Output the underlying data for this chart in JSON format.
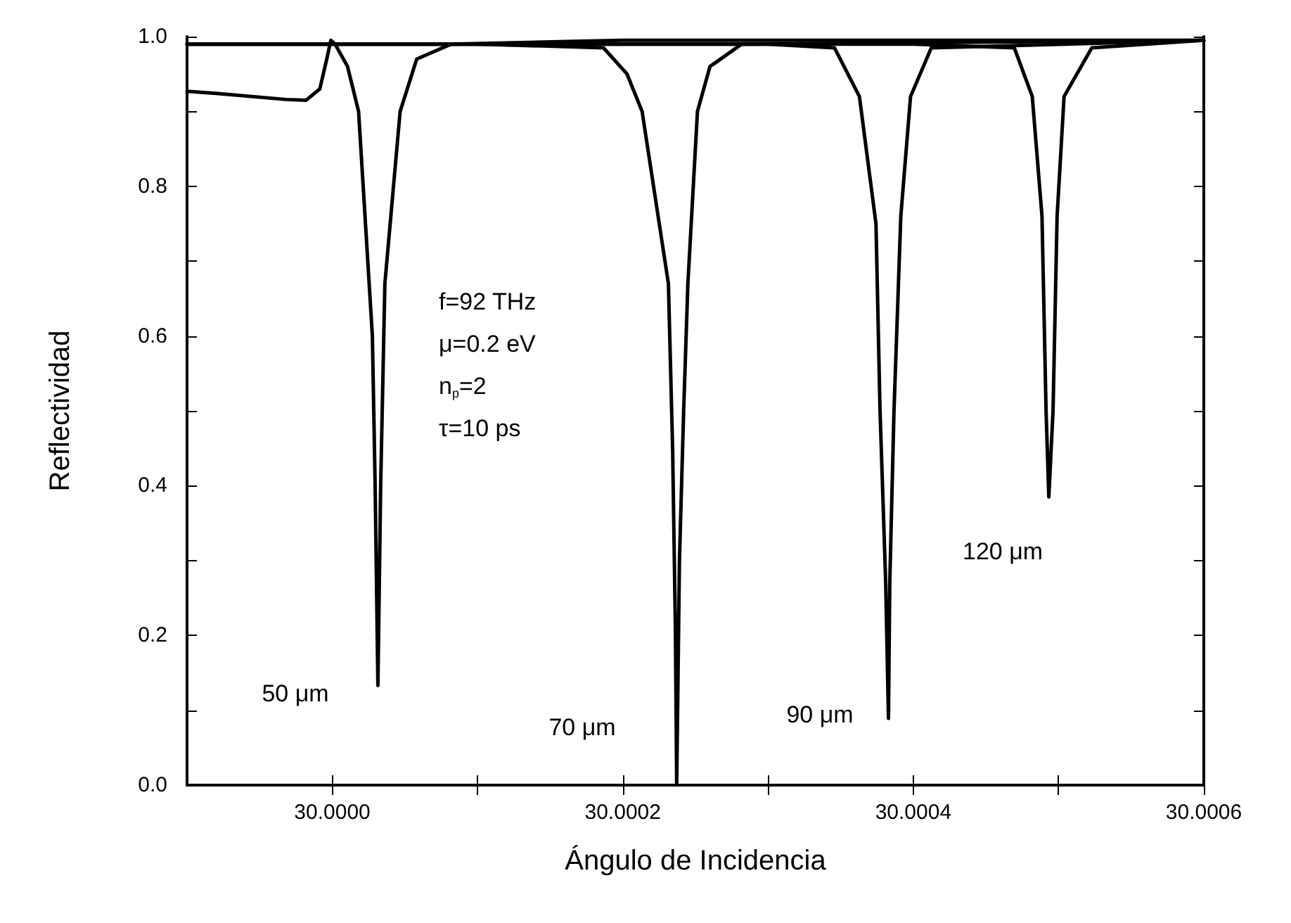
{
  "chart_data": {
    "type": "line",
    "xlabel": "Ángulo de Incidencia",
    "ylabel": "Reflectividad",
    "xlim": [
      29.9999,
      30.0006
    ],
    "ylim": [
      0,
      1
    ],
    "xticks": [
      {
        "value": 30,
        "label": "30.0000"
      },
      {
        "value": 30.0001,
        "label": null
      },
      {
        "value": 30.0002,
        "label": "30.0002"
      },
      {
        "value": 30.0003,
        "label": null
      },
      {
        "value": 30.0004,
        "label": "30.0004"
      },
      {
        "value": 30.0005,
        "label": null
      },
      {
        "value": 30.0006,
        "label": "30.0006"
      }
    ],
    "yticks": [
      {
        "value": 0,
        "label": "0.0"
      },
      {
        "value": 0.1,
        "label": null
      },
      {
        "value": 0.2,
        "label": "0.2"
      },
      {
        "value": 0.3,
        "label": null
      },
      {
        "value": 0.4,
        "label": "0.4"
      },
      {
        "value": 0.5,
        "label": null
      },
      {
        "value": 0.6,
        "label": "0.6"
      },
      {
        "value": 0.7,
        "label": null
      },
      {
        "value": 0.8,
        "label": "0.8"
      },
      {
        "value": 0.9,
        "label": null
      },
      {
        "value": 1,
        "label": "1.0"
      }
    ],
    "grid": false,
    "marker": "none",
    "line_style": "solid",
    "series": [
      {
        "color": "#000000",
        "x": [
          29.9999,
          29.99992,
          29.999968,
          29.999982,
          29.9999914,
          29.9999962,
          29.999999,
          30.0000019,
          30.0000105,
          30.0000181,
          30.0000276,
          30.0000295,
          30.0000314,
          30.0000333,
          30.0000362,
          30.0000467,
          30.0000581,
          30.0000819,
          30.0002,
          30.0006
        ],
        "values": [
          0.927,
          0.924,
          0.916,
          0.915,
          0.93,
          0.97,
          0.995,
          0.99,
          0.96,
          0.9,
          0.6,
          0.4,
          0.133,
          0.4,
          0.67,
          0.9,
          0.97,
          0.99,
          0.995,
          0.995
        ]
      },
      {
        "color": "#000000",
        "x": [
          29.9999,
          30.0001,
          30.0001867,
          30.0002029,
          30.0002133,
          30.0002314,
          30.0002343,
          30.0002362,
          30.0002371,
          30.000239,
          30.0002419,
          30.0002448,
          30.0002514,
          30.00026,
          30.0002819,
          30.0006
        ],
        "values": [
          0.99,
          0.99,
          0.985,
          0.95,
          0.9,
          0.67,
          0.45,
          0.21,
          0,
          0.3,
          0.5,
          0.67,
          0.9,
          0.96,
          0.99,
          0.995
        ]
      },
      {
        "color": "#000000",
        "x": [
          29.9999,
          30.0003,
          30.0003457,
          30.0003629,
          30.0003743,
          30.0003771,
          30.000381,
          30.0003829,
          30.0003838,
          30.0003867,
          30.0003914,
          30.0003981,
          30.0004124,
          30.0006
        ],
        "values": [
          0.99,
          0.99,
          0.985,
          0.92,
          0.75,
          0.5,
          0.27,
          0.089,
          0.27,
          0.5,
          0.76,
          0.92,
          0.985,
          0.995
        ]
      },
      {
        "color": "#000000",
        "x": [
          29.9999,
          30.0004,
          30.0004695,
          30.0004819,
          30.0004886,
          30.0004914,
          30.0004933,
          30.0004962,
          30.000499,
          30.0005038,
          30.0005229,
          30.0006
        ],
        "values": [
          0.99,
          0.99,
          0.985,
          0.92,
          0.76,
          0.5,
          0.385,
          0.5,
          0.76,
          0.92,
          0.985,
          0.995
        ]
      }
    ],
    "annotations": [
      "f=92 THz",
      "μ=0.2 eV",
      "n$_{p}$=2",
      "τ=10 ps",
      "50 μm",
      "70 μm",
      "90 μm",
      "120 μm"
    ]
  }
}
